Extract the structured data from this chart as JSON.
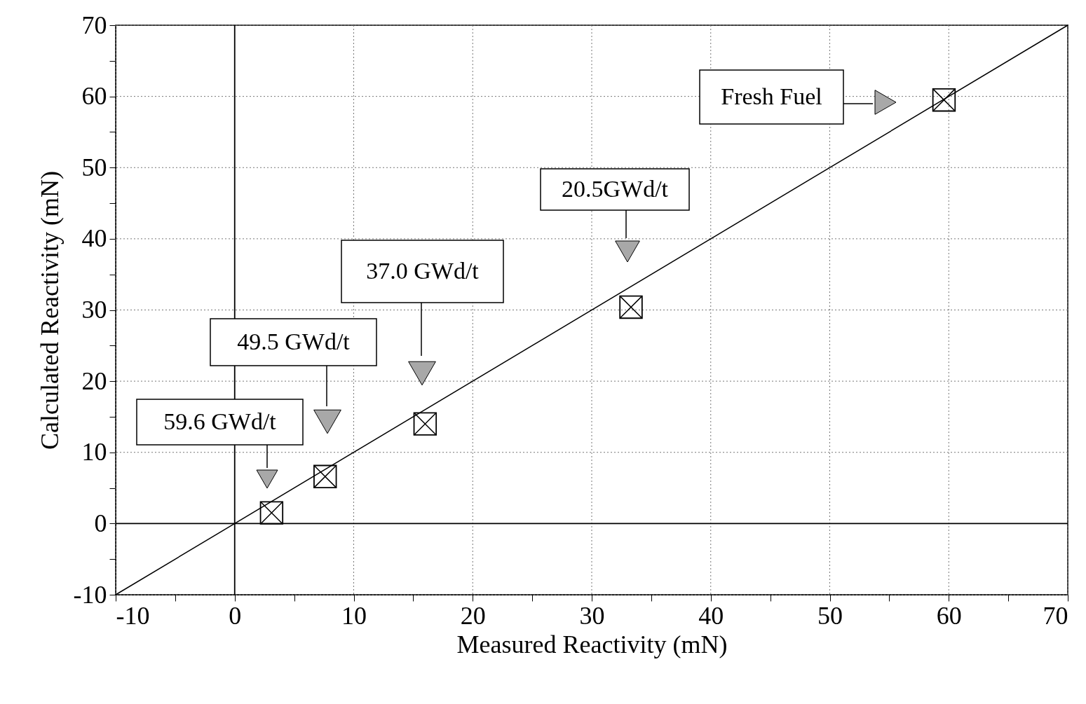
{
  "chart_data": {
    "type": "scatter",
    "xlabel": "Measured Reactivity (mN)",
    "ylabel": "Calculated Reactivity (mN)",
    "xlim": [
      -10,
      70
    ],
    "ylim": [
      -10,
      70
    ],
    "xticks": [
      -10,
      {
        "value": -5,
        "label": null
      },
      0,
      {
        "value": 5,
        "label": null
      },
      10,
      {
        "value": 15,
        "label": null
      },
      20,
      {
        "value": 25,
        "label": null
      },
      30,
      {
        "value": 35,
        "label": null
      },
      40,
      {
        "value": 45,
        "label": null
      },
      50,
      {
        "value": 55,
        "label": null
      },
      60,
      {
        "value": 65,
        "label": null
      },
      70
    ],
    "yticks": [
      -10,
      {
        "value": -5,
        "label": null
      },
      0,
      {
        "value": 5,
        "label": null
      },
      10,
      {
        "value": 15,
        "label": null
      },
      20,
      {
        "value": 25,
        "label": null
      },
      30,
      {
        "value": 35,
        "label": null
      },
      40,
      {
        "value": 45,
        "label": null
      },
      50,
      {
        "value": 55,
        "label": null
      },
      60,
      {
        "value": 65,
        "label": null
      },
      70
    ],
    "grid": true,
    "series": [
      {
        "marker": "square",
        "color": "#000000",
        "x": [
          3.1,
          7.6,
          16.0,
          33.3,
          59.6
        ],
        "values": [
          1.5,
          6.6,
          14.0,
          30.4,
          59.5
        ]
      },
      {
        "type": "line",
        "marker": "none",
        "color": "#000000",
        "x": [
          -10,
          70
        ],
        "values": [
          -10,
          70
        ]
      }
    ],
    "annotations": [
      "59.6 GWd/t",
      "49.5 GWd/t",
      "37.0 GWd/t",
      "20.5GWd/t",
      "Fresh Fuel"
    ]
  }
}
